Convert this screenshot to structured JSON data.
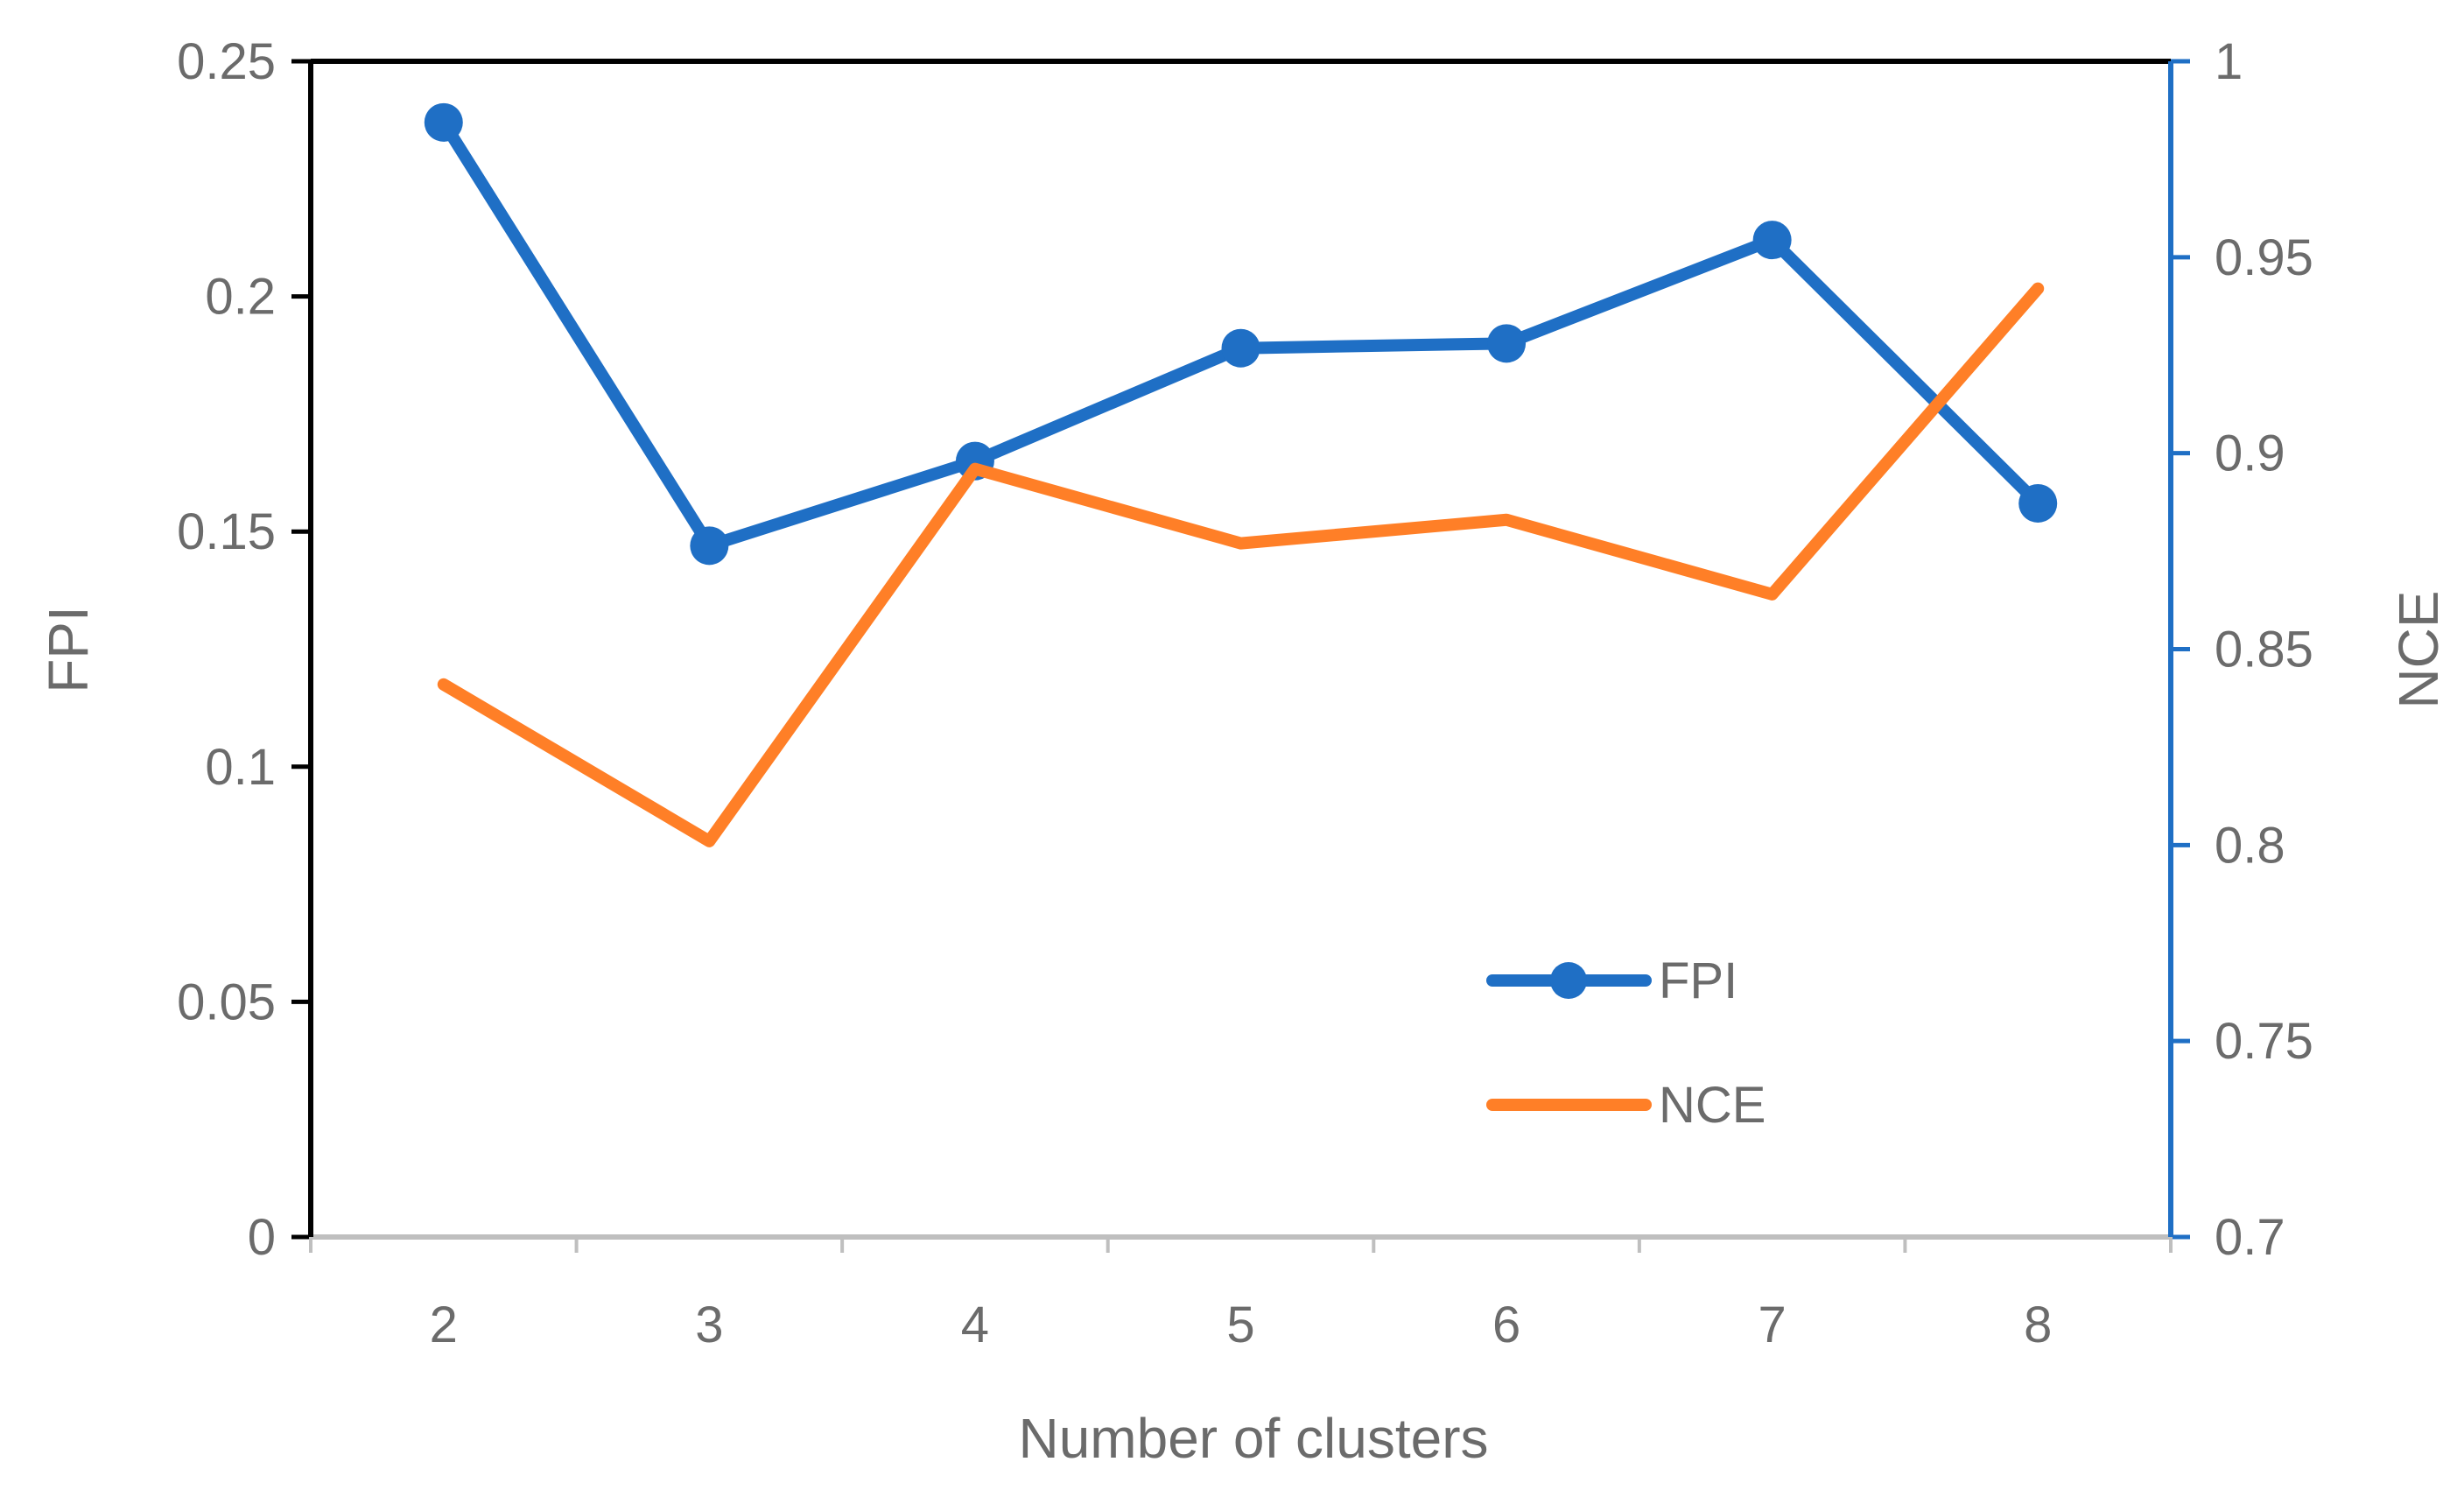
{
  "chart_data": {
    "type": "line",
    "x": [
      2,
      3,
      4,
      5,
      6,
      7,
      8
    ],
    "xlabel": "Number of clusters",
    "ylabel": "FPI",
    "y2label": "NCE",
    "ylim": [
      0,
      0.25
    ],
    "y2lim": [
      0.7,
      1
    ],
    "yticks": [
      "0",
      "0.05",
      "0.1",
      "0.15",
      "0.2",
      "0.25"
    ],
    "y2ticks": [
      "0.7",
      "0.75",
      "0.8",
      "0.85",
      "0.9",
      "0.95",
      "1"
    ],
    "grid": false,
    "legend_position": "bottom-right-inside",
    "series": [
      {
        "name": "FPI",
        "axis": "left",
        "color": "#1f6fc5",
        "marker": "circle",
        "values": [
          0.237,
          0.147,
          0.165,
          0.189,
          0.19,
          0.212,
          0.156
        ]
      },
      {
        "name": "NCE",
        "axis": "right",
        "color": "#ff7f27",
        "marker": "none",
        "values": [
          0.841,
          0.801,
          0.896,
          0.877,
          0.883,
          0.864,
          0.942
        ]
      }
    ]
  }
}
